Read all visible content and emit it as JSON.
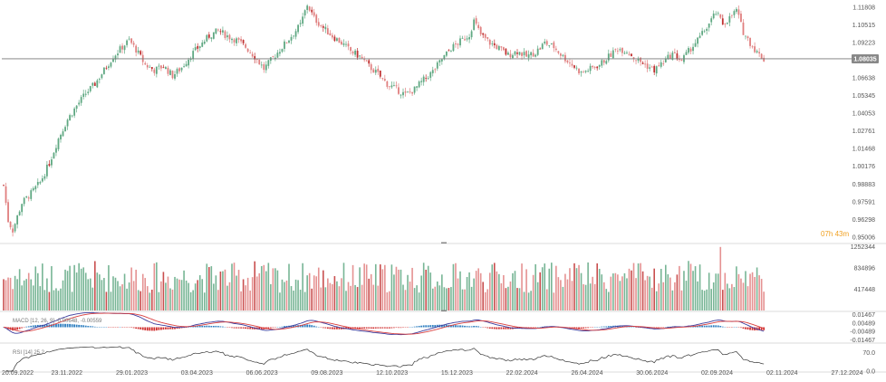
{
  "chart_data": {
    "type": "candlestick",
    "instrument": "",
    "current_price": 1.08035,
    "countdown": "07h 43m",
    "price_axis": {
      "ticks": [
        1.11808,
        1.10515,
        1.09223,
        1.08035,
        1.06638,
        1.05345,
        1.04053,
        1.02761,
        1.01468,
        1.00176,
        0.98883,
        0.97591,
        0.96298,
        0.95006
      ],
      "ylim": [
        0.946,
        1.122
      ]
    },
    "x_axis": {
      "labels": [
        "20.09.2022",
        "23.11.2022",
        "29.01.2023",
        "03.04.2023",
        "06.06.2023",
        "09.08.2023",
        "12.10.2023",
        "15.12.2023",
        "22.02.2024",
        "26.04.2024",
        "30.06.2024",
        "02.09.2024",
        "02.11.2024",
        "27.12.2024"
      ]
    },
    "price_path": [
      [
        0,
        0.988
      ],
      [
        2,
        0.962
      ],
      [
        4,
        0.955
      ],
      [
        8,
        0.975
      ],
      [
        12,
        0.982
      ],
      [
        16,
        0.99
      ],
      [
        20,
        1.004
      ],
      [
        24,
        1.022
      ],
      [
        28,
        1.036
      ],
      [
        32,
        1.046
      ],
      [
        36,
        1.055
      ],
      [
        40,
        1.062
      ],
      [
        44,
        1.072
      ],
      [
        48,
        1.082
      ],
      [
        52,
        1.089
      ],
      [
        55,
        1.094
      ],
      [
        58,
        1.087
      ],
      [
        62,
        1.076
      ],
      [
        66,
        1.072
      ],
      [
        70,
        1.075
      ],
      [
        74,
        1.068
      ],
      [
        78,
        1.074
      ],
      [
        82,
        1.083
      ],
      [
        86,
        1.09
      ],
      [
        90,
        1.097
      ],
      [
        94,
        1.101
      ],
      [
        98,
        1.097
      ],
      [
        102,
        1.094
      ],
      [
        106,
        1.089
      ],
      [
        110,
        1.082
      ],
      [
        114,
        1.073
      ],
      [
        118,
        1.081
      ],
      [
        122,
        1.089
      ],
      [
        126,
        1.097
      ],
      [
        130,
        1.105
      ],
      [
        133,
        1.12
      ],
      [
        136,
        1.11
      ],
      [
        140,
        1.103
      ],
      [
        144,
        1.097
      ],
      [
        148,
        1.092
      ],
      [
        152,
        1.086
      ],
      [
        156,
        1.082
      ],
      [
        160,
        1.075
      ],
      [
        164,
        1.069
      ],
      [
        168,
        1.062
      ],
      [
        172,
        1.058
      ],
      [
        176,
        1.054
      ],
      [
        180,
        1.058
      ],
      [
        184,
        1.065
      ],
      [
        188,
        1.071
      ],
      [
        192,
        1.08
      ],
      [
        196,
        1.088
      ],
      [
        200,
        1.093
      ],
      [
        204,
        1.098
      ],
      [
        206,
        1.108
      ],
      [
        209,
        1.098
      ],
      [
        213,
        1.092
      ],
      [
        217,
        1.088
      ],
      [
        221,
        1.083
      ],
      [
        225,
        1.086
      ],
      [
        229,
        1.082
      ],
      [
        233,
        1.085
      ],
      [
        237,
        1.092
      ],
      [
        241,
        1.089
      ],
      [
        245,
        1.082
      ],
      [
        249,
        1.076
      ],
      [
        253,
        1.07
      ],
      [
        257,
        1.073
      ],
      [
        261,
        1.076
      ],
      [
        265,
        1.082
      ],
      [
        269,
        1.088
      ],
      [
        273,
        1.086
      ],
      [
        277,
        1.08
      ],
      [
        281,
        1.076
      ],
      [
        285,
        1.072
      ],
      [
        289,
        1.078
      ],
      [
        293,
        1.084
      ],
      [
        297,
        1.079
      ],
      [
        301,
        1.088
      ],
      [
        305,
        1.096
      ],
      [
        309,
        1.106
      ],
      [
        312,
        1.114
      ],
      [
        315,
        1.106
      ],
      [
        318,
        1.11
      ],
      [
        321,
        1.116
      ],
      [
        324,
        1.1
      ],
      [
        327,
        1.092
      ],
      [
        330,
        1.085
      ],
      [
        333,
        1.08
      ]
    ],
    "volume_axis": {
      "ticks": [
        1252344,
        834896,
        417448
      ],
      "ylim": [
        0,
        1300000
      ]
    },
    "macd": {
      "label": "MACD [12, 26, 9] -0.00648, -0.00559",
      "ticks": [
        0.01467,
        0.00489,
        -0.00489,
        -0.01467
      ],
      "ylim": [
        -0.0175,
        0.0175
      ]
    },
    "rsi": {
      "label": "RSI [14] 25.2",
      "ticks": [
        70.0,
        0.0
      ],
      "ylim": [
        0,
        100
      ]
    },
    "colors": {
      "up": "#5fa882",
      "down": "#e07f7f",
      "down_strong": "#c03030",
      "macd_line": "#3b3b9c",
      "signal_line": "#d94040",
      "hist_pos": "#2f7fc0",
      "hist_neg": "#d03030",
      "rsi_line": "#333333",
      "price_tag": "#888888",
      "timer": "#f0a020"
    }
  }
}
